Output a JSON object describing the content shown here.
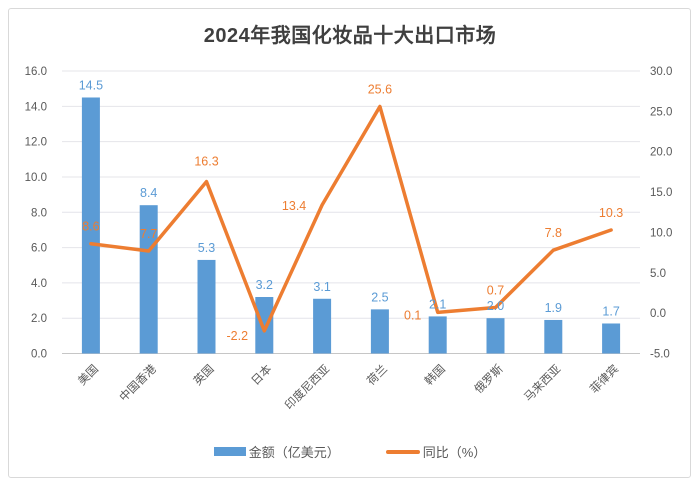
{
  "title": "2024年我国化妆品十大出口市场",
  "legend": {
    "bar_label": "金额（亿美元）",
    "line_label": "同比（%）"
  },
  "colors": {
    "bar": "#5B9BD5",
    "line": "#ED7D31",
    "title_text": "#3F3F3F",
    "axis_text": "#595959",
    "gridline": "#E4E4EA",
    "axis_line": "#C6C6C6",
    "frame_border": "#D9D9D9"
  },
  "chart_data": {
    "type": "bar",
    "subtype": "bar+line combo, dual axis",
    "title": "2024年我国化妆品十大出口市场",
    "categories": [
      "美国",
      "中国香港",
      "英国",
      "日本",
      "印度尼西亚",
      "荷兰",
      "韩国",
      "俄罗斯",
      "马来西亚",
      "菲律宾"
    ],
    "series": [
      {
        "name": "金额（亿美元）",
        "type": "bar",
        "axis": "left",
        "values": [
          14.5,
          8.4,
          5.3,
          3.2,
          3.1,
          2.5,
          2.1,
          2.0,
          1.9,
          1.7
        ]
      },
      {
        "name": "同比（%）",
        "type": "line",
        "axis": "right",
        "values": [
          8.6,
          7.7,
          16.3,
          -2.2,
          13.4,
          25.6,
          0.1,
          0.7,
          7.8,
          10.3
        ]
      }
    ],
    "left_axis": {
      "min": 0,
      "max": 16,
      "step": 2,
      "tick_labels": [
        "0.0",
        "2.0",
        "4.0",
        "6.0",
        "8.0",
        "10.0",
        "12.0",
        "14.0",
        "16.0"
      ]
    },
    "right_axis": {
      "min": -5,
      "max": 30,
      "step": 5,
      "tick_labels": [
        "-5.0",
        "0.0",
        "5.0",
        "10.0",
        "15.0",
        "20.0",
        "25.0",
        "30.0"
      ]
    },
    "grid": true,
    "data_labels": true,
    "legend_position": "bottom",
    "xlabel": "",
    "ylabel": ""
  }
}
